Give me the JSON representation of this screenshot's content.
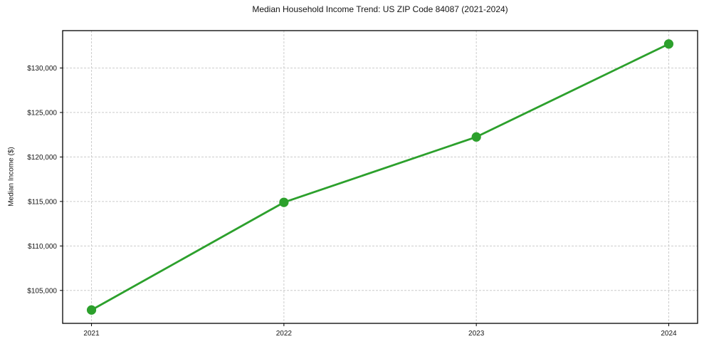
{
  "chart_data": {
    "type": "line",
    "title": "Median Household Income Trend: US ZIP Code 84087 (2021-2024)",
    "xlabel": "",
    "ylabel": "Median Income ($)",
    "x": [
      2021,
      2022,
      2023,
      2024
    ],
    "series": [
      {
        "values": [
          102800,
          114900,
          122250,
          132700
        ],
        "color": "#2ca02c",
        "marker": "circle"
      }
    ],
    "x_tick_labels": [
      "2021",
      "2022",
      "2023",
      "2024"
    ],
    "y_ticks": [
      105000,
      110000,
      115000,
      120000,
      125000,
      130000
    ],
    "y_tick_labels": [
      "$105,000",
      "$110,000",
      "$115,000",
      "$120,000",
      "$125,000",
      "$130,000"
    ],
    "xlim": [
      2020.85,
      2024.15
    ],
    "ylim": [
      101300,
      134200
    ],
    "grid": true,
    "grid_style": "dashed",
    "grid_color": "#cccccc",
    "axis_color": "#000000",
    "text_color": "#151515",
    "background": "#ffffff",
    "legend_position": "none"
  }
}
